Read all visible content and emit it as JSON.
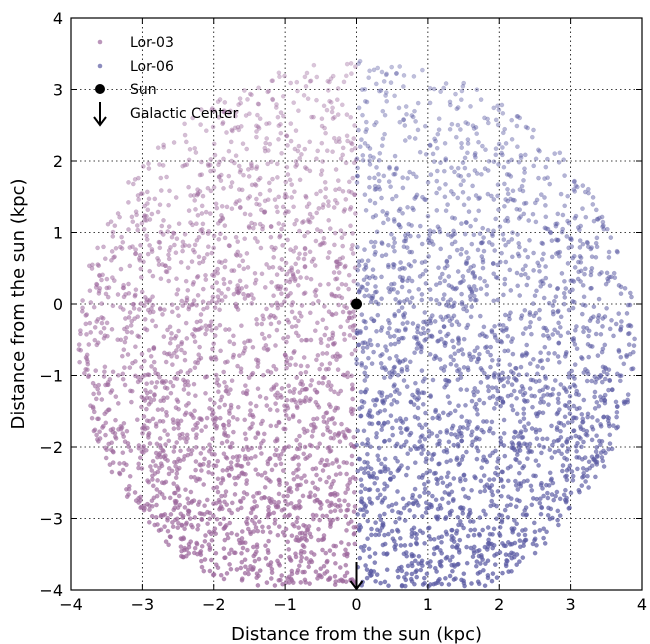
{
  "chart_data": {
    "type": "scatter",
    "xlabel": "Distance from the sun (kpc)",
    "ylabel": "Distance from the sun (kpc)",
    "xlim": [
      -4,
      4
    ],
    "ylim": [
      -4,
      4
    ],
    "x_ticks": [
      -4,
      -3,
      -2,
      -1,
      0,
      1,
      2,
      3,
      4
    ],
    "y_ticks": [
      -4,
      -3,
      -2,
      -1,
      0,
      1,
      2,
      3,
      4
    ],
    "x_tick_labels": [
      "−4",
      "−3",
      "−2",
      "−1",
      "0",
      "1",
      "2",
      "3",
      "4"
    ],
    "y_tick_labels": [
      "−4",
      "−3",
      "−2",
      "−1",
      "0",
      "1",
      "2",
      "3",
      "4"
    ],
    "grid": true,
    "legend_position": "top-left",
    "series": [
      {
        "name": "Lor-03",
        "color": "#9e6a9e",
        "region": {
          "shape": "half-disk",
          "x_range": [
            -4,
            0
          ],
          "center": [
            0,
            -0.5
          ],
          "radius": 3.9,
          "density": "increases toward negative y"
        }
      },
      {
        "name": "Lor-06",
        "color": "#5b5ba3",
        "region": {
          "shape": "half-disk",
          "x_range": [
            0,
            4
          ],
          "center": [
            0,
            -0.5
          ],
          "radius": 3.9,
          "density": "increases toward negative y"
        }
      }
    ],
    "markers": [
      {
        "name": "Sun",
        "x": 0,
        "y": 0,
        "symbol": "filled-circle",
        "color": "#000000"
      },
      {
        "name": "Galactic Center",
        "x": 0,
        "y": -4,
        "symbol": "down-arrow",
        "color": "#000000"
      }
    ]
  }
}
